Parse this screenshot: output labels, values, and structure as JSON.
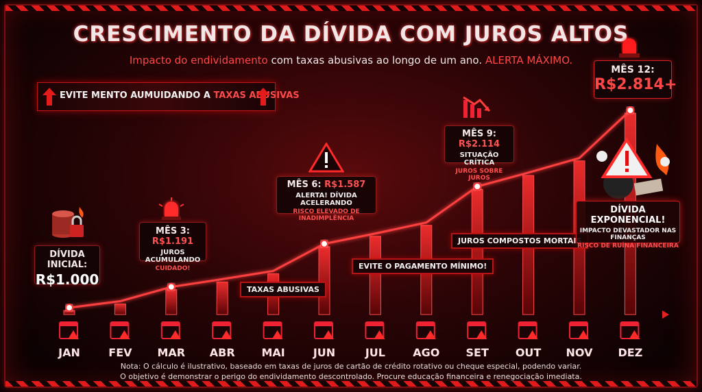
{
  "title": "CRESCIMENTO DA DÍVIDA COM JUROS ALTOS",
  "subtitle": {
    "part1": "Impacto do endividamento",
    "part2": " com taxas abusivas ao longo de um ano. ",
    "part3": "ALERTA MÁXIMO."
  },
  "warning_banner": {
    "text_a": "EVITE MENTO AUMUIDANDO A ",
    "text_b": "TAXAS ABUSIVAS"
  },
  "callouts": {
    "initial": {
      "label": "DÍVIDA INICIAL:",
      "value": "R$1.000"
    },
    "m3": {
      "label": "MÊS 3: ",
      "value": "R$1.191",
      "line2": "JUROS ACUMULANDO",
      "line3": "CUIDADO!"
    },
    "m6": {
      "label": "MÊS 6: ",
      "value": "R$1.587",
      "line2": "ALERTA! DÍVIDA ACELERANDO",
      "line3": "RISCO ELEVADO DE INADIMPLÊNCIA"
    },
    "m9": {
      "label": "MÊS 9: ",
      "value": "R$2.114",
      "line2": "SITUAÇÃO CRÍTICA",
      "line3": "JUROS SOBRE JUROS"
    },
    "m12": {
      "label": "MÊS 12:",
      "value": "R$2.814+"
    }
  },
  "tags": {
    "taxas": "TAXAS ABUSIVAS",
    "evite": "EVITE O PAGAMENTO MÍNIMO!",
    "juros": "JUROS COMPOSTOS MORTAIS"
  },
  "final_box": {
    "title": "DÍVIDA EXPONENCIAL!",
    "line2": "IMPACTO DEVASTADOR NAS FINANÇAS",
    "line3": "RISCO DE RUÍNA FINANCEIRA"
  },
  "note": {
    "line1": "Nota: O cálculo é ilustrativo, baseado em taxas de juros de cartão de crédito rotativo ou cheque especial, podendo variar.",
    "line2": "O objetivo é demonstrar o perigo do endividamento descontrolado. Procure educação financeira e renegociação imediata."
  },
  "colors": {
    "accent": "#ff2a2a",
    "dark_red": "#7a0f12",
    "background": "#1a0406"
  },
  "icons": [
    "warning-icon",
    "calendar-icon",
    "skull-icon",
    "siren-icon",
    "coins-lock-icon",
    "bomb-icon",
    "money-fire-icon",
    "chart-down-icon"
  ],
  "chart_data": {
    "type": "bar",
    "categories": [
      "JAN",
      "FEV",
      "MAR",
      "ABR",
      "MAI",
      "JUN",
      "JUL",
      "AGO",
      "SET",
      "OUT",
      "NOV",
      "DEZ"
    ],
    "values": [
      1000,
      1060,
      1191,
      1262,
      1338,
      1587,
      1682,
      1783,
      2114,
      2241,
      2375,
      2814
    ],
    "line_points": {
      "JAN": 1000,
      "MAR": 1191,
      "JUN": 1587,
      "SET": 2114,
      "DEZ": 2814
    },
    "title": "CRESCIMENTO DA DÍVIDA COM JUROS ALTOS",
    "xlabel": "",
    "ylabel": "",
    "ylim": [
      800,
      3000
    ],
    "grid": false
  }
}
